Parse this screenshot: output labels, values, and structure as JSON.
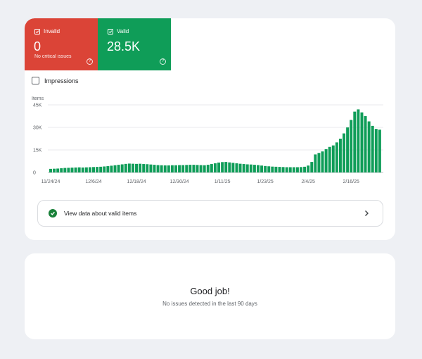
{
  "tiles": {
    "invalid": {
      "label": "Invalid",
      "value": "0",
      "subtitle": "No critical issues",
      "color": "#db4437",
      "icon": "checkbox-checked-icon"
    },
    "valid": {
      "label": "Valid",
      "value": "28.5K",
      "color": "#0f9d58",
      "icon": "checkbox-checked-icon"
    }
  },
  "impressions": {
    "label": "Impressions",
    "checked": false
  },
  "chart_data": {
    "type": "bar",
    "ylabel": "Items",
    "ylim": [
      0,
      45000
    ],
    "yticks": [
      "0",
      "15K",
      "30K",
      "45K"
    ],
    "xticks": [
      "11/24/24",
      "12/6/24",
      "12/18/24",
      "12/30/24",
      "1/11/25",
      "1/23/25",
      "2/4/25",
      "2/16/25"
    ],
    "grid": true,
    "bar_color": "#0f9d58",
    "series": [
      {
        "values": [
          2400,
          2500,
          2600,
          2800,
          3000,
          3100,
          3200,
          3300,
          3400,
          3300,
          3400,
          3500,
          3600,
          3700,
          3800,
          4000,
          4200,
          4500,
          4800,
          5100,
          5400,
          5700,
          5900,
          5800,
          5700,
          5800,
          5600,
          5500,
          5300,
          5100,
          4900,
          4800,
          4700,
          4700,
          4800,
          4800,
          4900,
          4900,
          5000,
          5100,
          5100,
          5000,
          4900,
          4800,
          5100,
          5600,
          6100,
          6600,
          6900,
          7000,
          6700,
          6400,
          6100,
          5800,
          5600,
          5400,
          5300,
          5100,
          4900,
          4600,
          4300,
          4100,
          3900,
          3800,
          3700,
          3600,
          3500,
          3500,
          3500,
          3500,
          3600,
          3800,
          4600,
          7000,
          12000,
          13000,
          14000,
          15500,
          17000,
          18000,
          20000,
          22500,
          26000,
          30000,
          35000,
          40500,
          42000,
          40000,
          37500,
          34000,
          31000,
          29000,
          28500
        ]
      }
    ]
  },
  "link_row": {
    "label": "View data about valid items",
    "icon": "check-circle-icon",
    "chevron": "chevron-right-icon"
  },
  "summary": {
    "title": "Good job!",
    "subtitle": "No issues detected in the last 90 days"
  }
}
